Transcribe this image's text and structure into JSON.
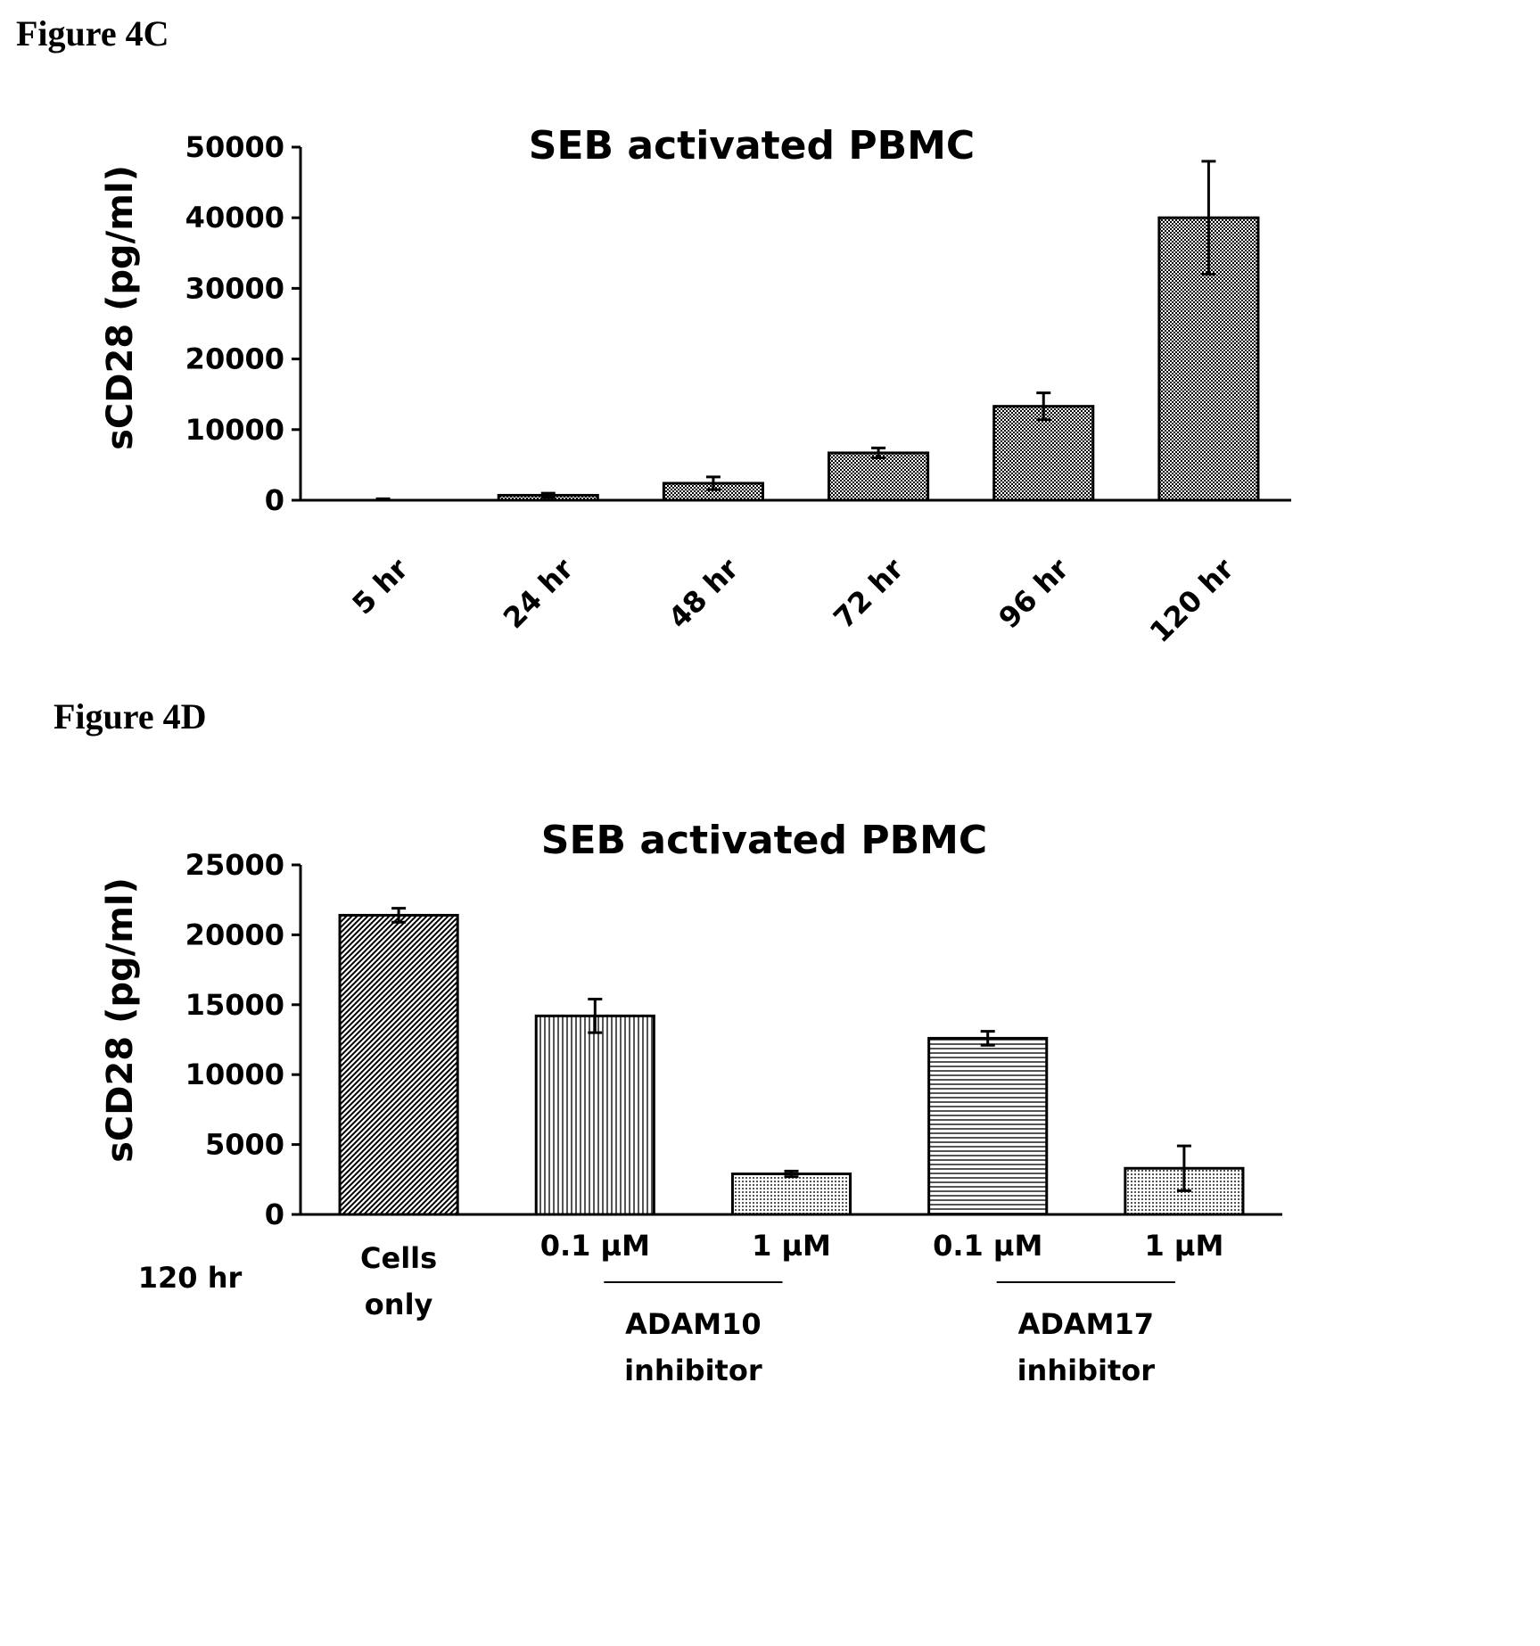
{
  "figures": {
    "c_label": "Figure 4C",
    "d_label": "Figure 4D"
  },
  "chart_data": [
    {
      "type": "bar",
      "title": "SEB activated PBMC",
      "ylabel": "sCD28 (pg/ml)",
      "xlabel": "",
      "categories": [
        "5 hr",
        "24 hr",
        "48 hr",
        "72 hr",
        "96 hr",
        "120 hr"
      ],
      "values": [
        0,
        700,
        2400,
        6700,
        13300,
        40000
      ],
      "error": [
        200,
        300,
        900,
        700,
        1900,
        8000
      ],
      "ylim": [
        0,
        50000
      ],
      "yticks": [
        "0",
        "10000",
        "20000",
        "30000",
        "40000",
        "50000"
      ],
      "grid": false,
      "legend": "none",
      "bar_fill": "crosshatch"
    },
    {
      "type": "bar",
      "title": "SEB activated PBMC",
      "ylabel": "sCD28 (pg/ml)",
      "xlabel": "",
      "categories": [
        "Cells only",
        "0.1 µM",
        "1 µM",
        "0.1 µM",
        "1 µM"
      ],
      "category_lines": [
        [
          "Cells",
          "only"
        ],
        [
          "0.1 µM"
        ],
        [
          "1 µM"
        ],
        [
          "0.1 µM"
        ],
        [
          "1 µM"
        ]
      ],
      "values": [
        21400,
        14200,
        2900,
        12600,
        3300
      ],
      "error": [
        500,
        1200,
        200,
        500,
        1600
      ],
      "ylim": [
        0,
        25000
      ],
      "yticks": [
        "0",
        "5000",
        "10000",
        "15000",
        "20000",
        "25000"
      ],
      "groups": [
        {
          "lines": [
            "ADAM10",
            "inhibitor"
          ],
          "members": [
            1,
            2
          ]
        },
        {
          "lines": [
            "ADAM17",
            "inhibitor"
          ],
          "members": [
            3,
            4
          ]
        }
      ],
      "timepoint_label": "120 hr",
      "grid": false,
      "legend": "none",
      "bar_fills": [
        "diagonal",
        "vertical",
        "dots",
        "horizontal",
        "dots"
      ]
    }
  ]
}
